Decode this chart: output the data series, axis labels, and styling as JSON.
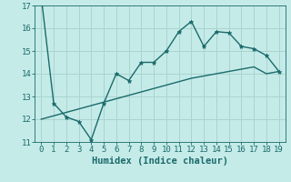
{
  "title": "",
  "xlabel": "Humidex (Indice chaleur)",
  "ylabel": "",
  "background_color": "#c5ebe8",
  "grid_color": "#aad4d0",
  "line_color": "#1a6b6b",
  "x_min": -0.5,
  "x_max": 19.5,
  "y_min": 11,
  "y_max": 17,
  "line1_x": [
    0,
    1,
    2,
    3,
    4,
    5,
    6,
    7,
    8,
    9,
    10,
    11,
    12,
    13,
    14,
    15,
    16,
    17,
    18,
    19
  ],
  "line1_y": [
    17.4,
    12.7,
    12.1,
    11.9,
    11.1,
    12.7,
    14.0,
    13.7,
    14.5,
    14.5,
    15.0,
    15.85,
    16.3,
    15.2,
    15.85,
    15.8,
    15.2,
    15.1,
    14.8,
    14.1
  ],
  "line2_x": [
    0,
    1,
    2,
    3,
    4,
    5,
    6,
    7,
    8,
    9,
    10,
    11,
    12,
    13,
    14,
    15,
    16,
    17,
    18,
    19
  ],
  "line2_y": [
    12.0,
    12.15,
    12.3,
    12.45,
    12.6,
    12.75,
    12.9,
    13.05,
    13.2,
    13.35,
    13.5,
    13.65,
    13.8,
    13.9,
    14.0,
    14.1,
    14.2,
    14.3,
    14.0,
    14.1
  ],
  "yticks": [
    11,
    12,
    13,
    14,
    15,
    16,
    17
  ],
  "xticks": [
    0,
    1,
    2,
    3,
    4,
    5,
    6,
    7,
    8,
    9,
    10,
    11,
    12,
    13,
    14,
    15,
    16,
    17,
    18,
    19
  ],
  "tick_fontsize": 6.5,
  "xlabel_fontsize": 7.5
}
